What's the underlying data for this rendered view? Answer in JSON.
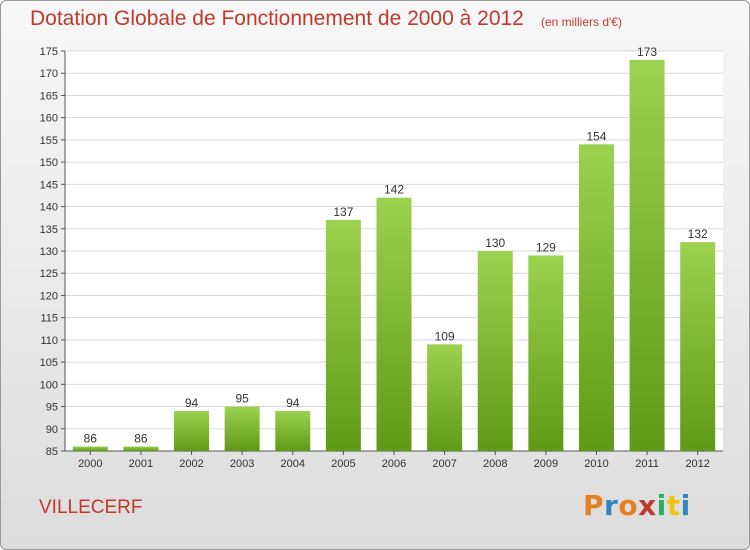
{
  "header": {
    "title": "Dotation Globale de Fonctionnement de 2000 à 2012",
    "subtitle": "(en milliers d'€)"
  },
  "footer": {
    "commune": "VILLECERF",
    "logo_text": "Proxiti",
    "logo_colors": [
      "#e67e22",
      "#2e86c1",
      "#e67e22",
      "#c0392b",
      "#27ae60",
      "#f1c40f",
      "#2e86c1"
    ]
  },
  "colors": {
    "bar_top": "#9dd150",
    "bar_bottom": "#5f9a16",
    "accent": "#c0392b",
    "grid": "#d8d8d8"
  },
  "chart_data": {
    "type": "bar",
    "title": "Dotation Globale de Fonctionnement de 2000 à 2012",
    "subtitle": "(en milliers d'€)",
    "categories": [
      "2000",
      "2001",
      "2002",
      "2003",
      "2004",
      "2005",
      "2006",
      "2007",
      "2008",
      "2009",
      "2010",
      "2011",
      "2012"
    ],
    "values": [
      86,
      86,
      94,
      95,
      94,
      137,
      142,
      109,
      130,
      129,
      154,
      173,
      132
    ],
    "ylim": [
      85,
      175
    ],
    "yticks": [
      85,
      90,
      95,
      100,
      105,
      110,
      115,
      120,
      125,
      130,
      135,
      140,
      145,
      150,
      155,
      160,
      165,
      170,
      175
    ],
    "grid": true,
    "xlabel": "",
    "ylabel": ""
  }
}
